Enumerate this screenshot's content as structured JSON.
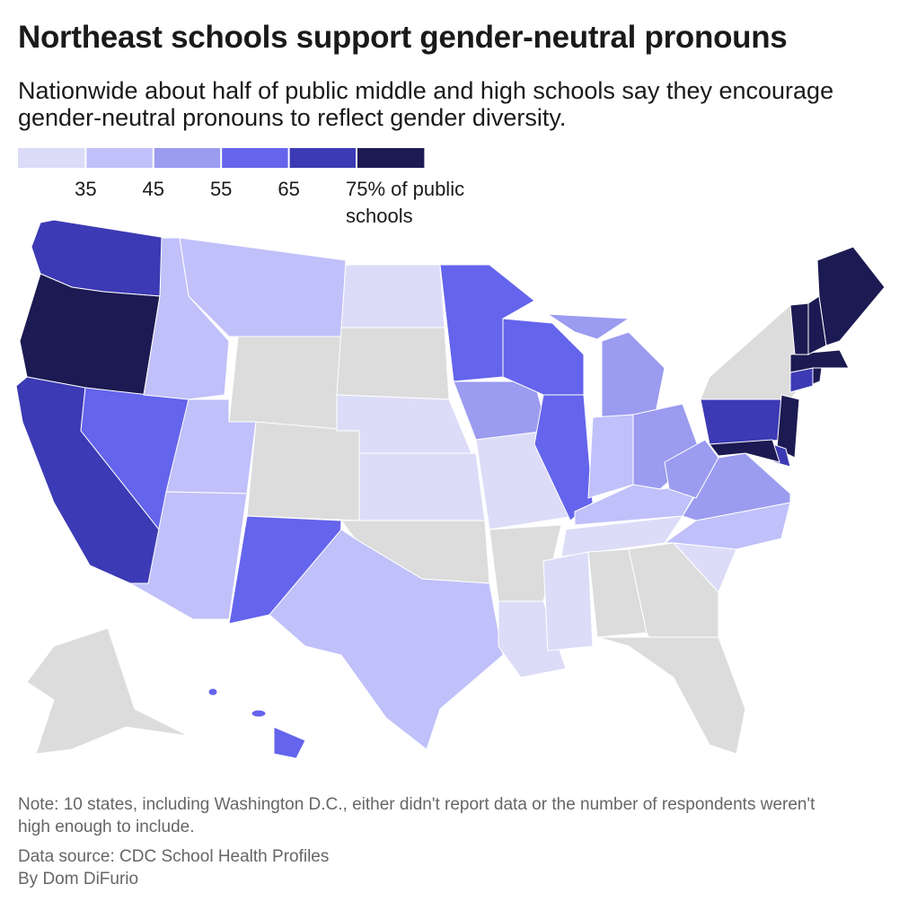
{
  "header": {
    "title": "Northeast schools support gender-neutral pronouns",
    "subtitle": "Nationwide about half of public middle and high schools say they encourage gender-neutral pronouns to reflect gender diversity."
  },
  "legend": {
    "colors": [
      "#dcdcf8",
      "#c0c0fa",
      "#9b9bf0",
      "#6464ec",
      "#3c3ab4",
      "#1c1a52"
    ],
    "ticks": [
      35,
      45,
      55,
      65,
      {
        "value": 75,
        "label": "75% of public schools"
      }
    ],
    "no_data_color": "#dcdcdc"
  },
  "footer": {
    "note": "Note: 10 states, including Washington D.C., either didn't report data or the number of respondents weren't high enough to include.",
    "source": "Data source: CDC School Health Profiles",
    "byline": "By Dom DiFurio"
  }
}
